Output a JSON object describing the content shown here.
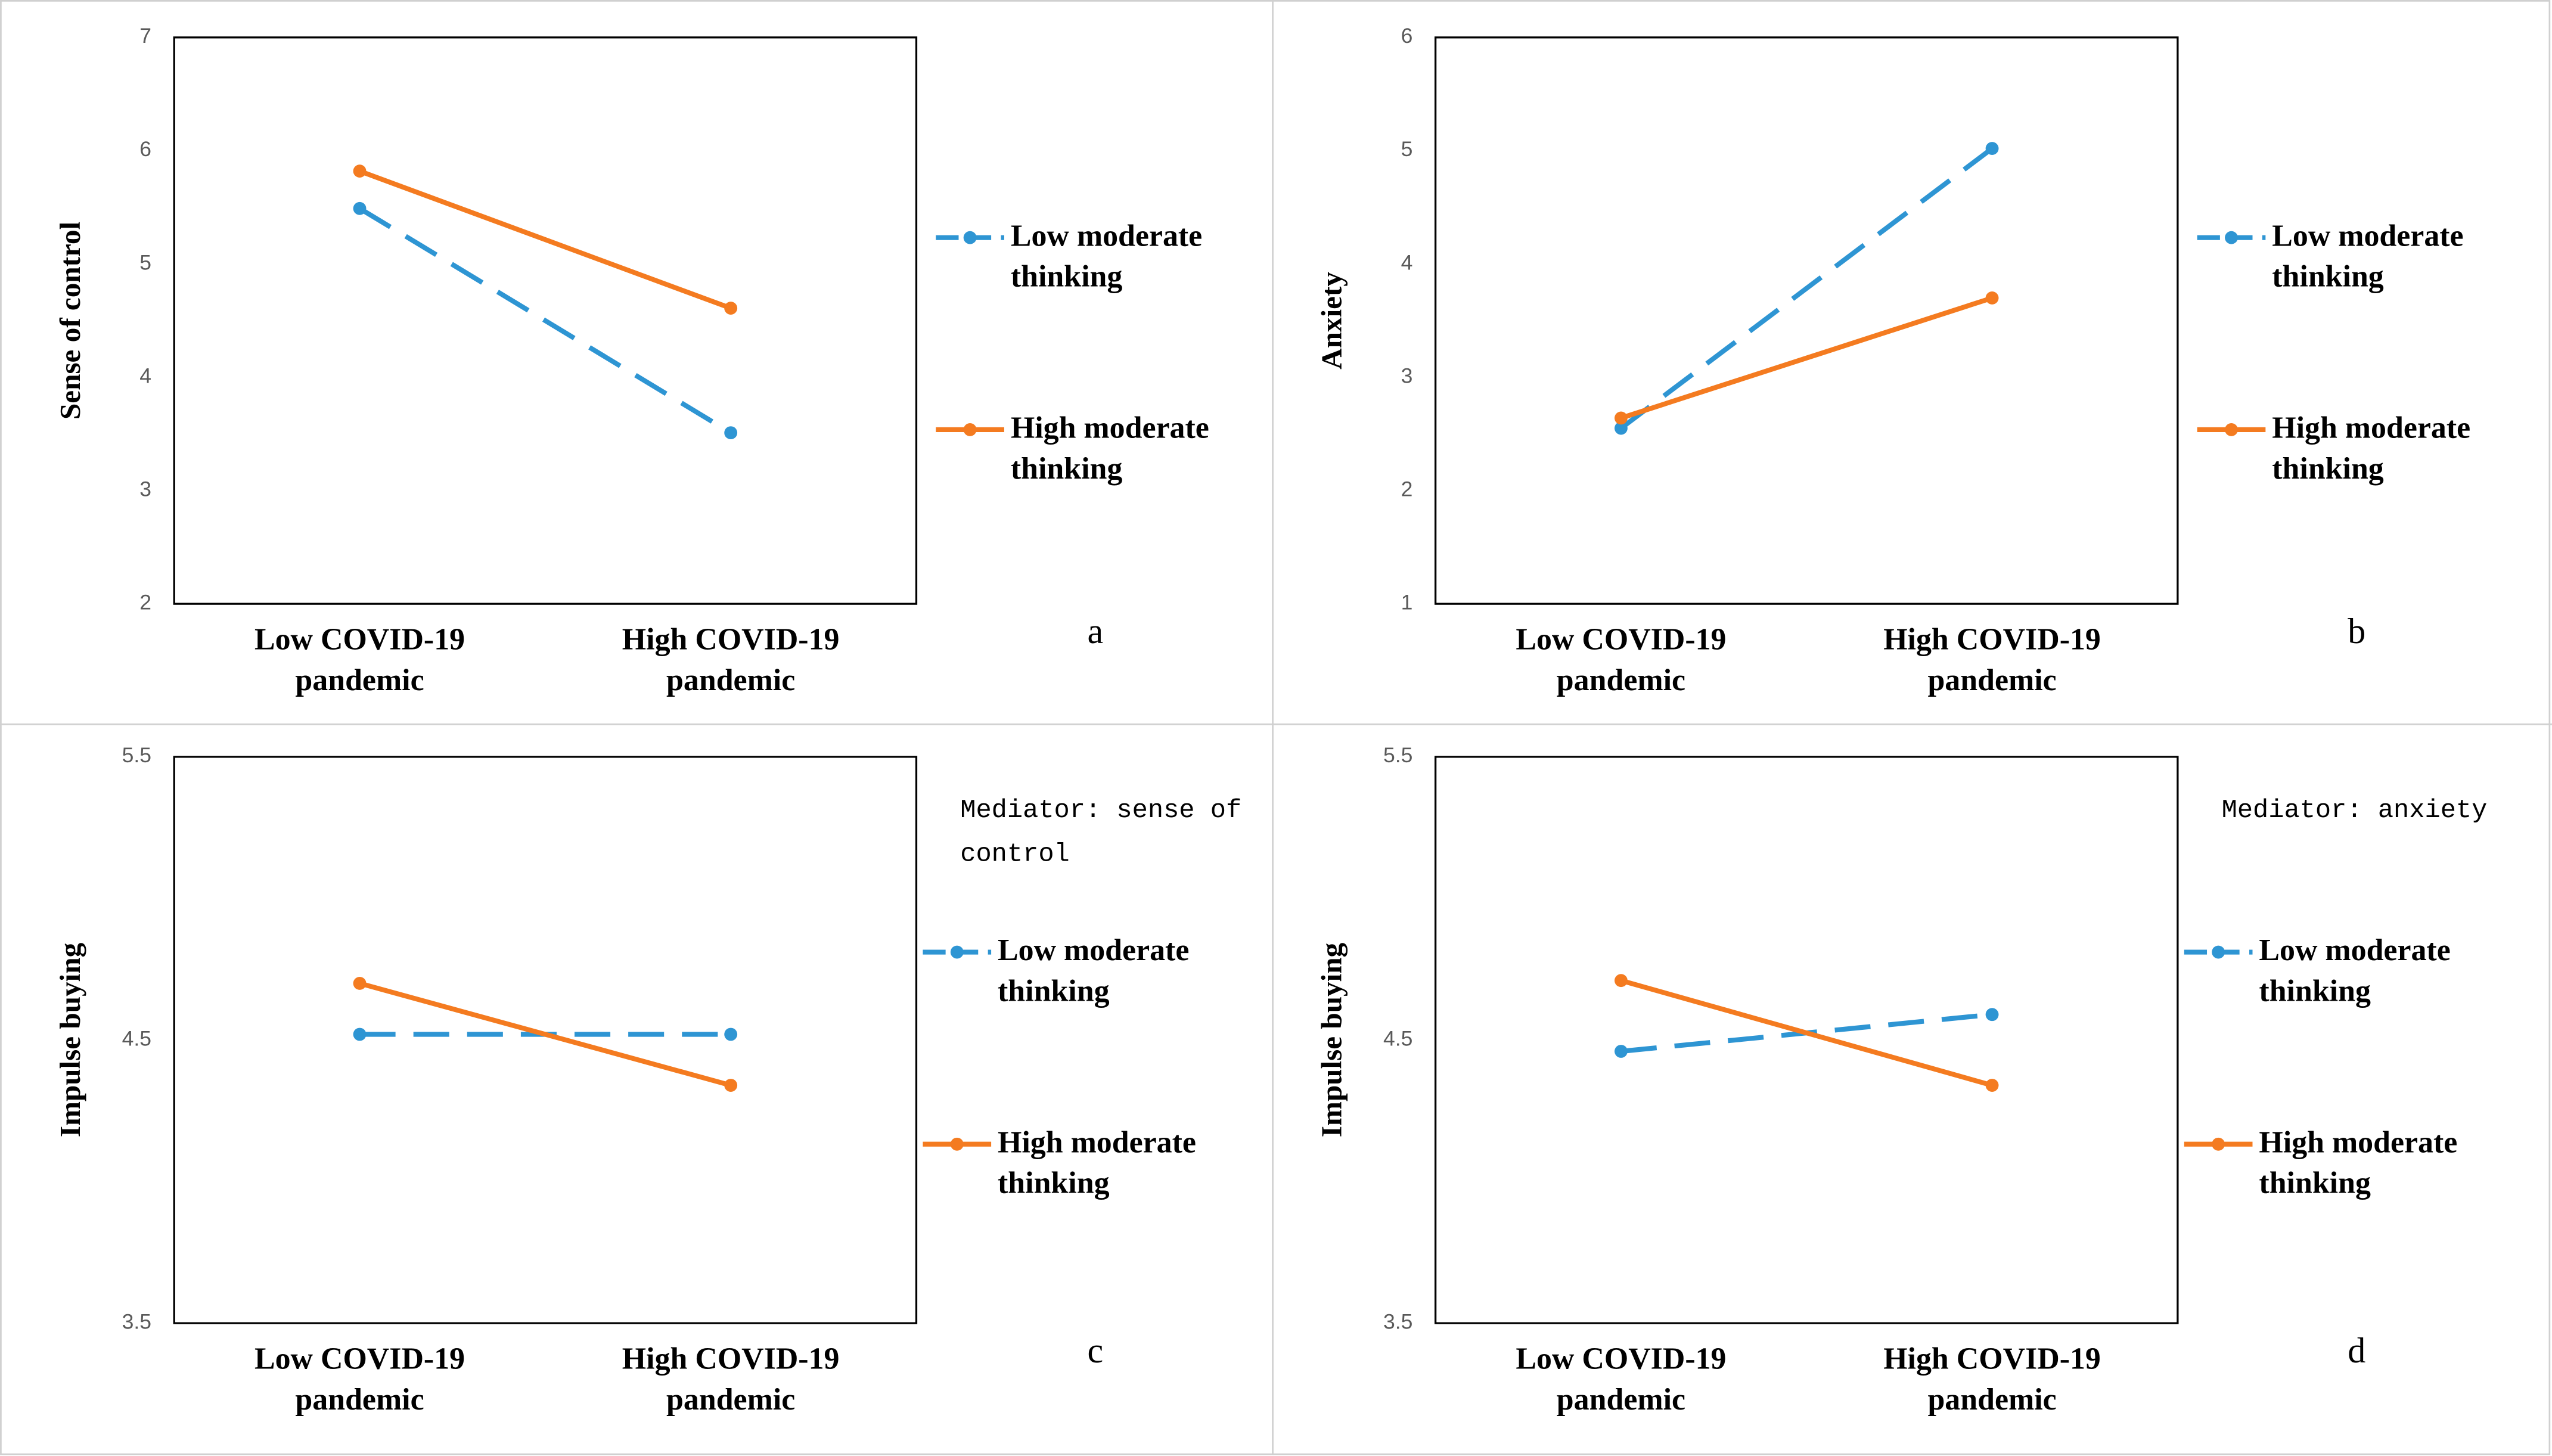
{
  "chart_data": [
    {
      "type": "line",
      "panel": "a",
      "y_label": "Sense of control",
      "categories": [
        "Low COVID-19 pandemic",
        "High COVID-19 pandemic"
      ],
      "series": [
        {
          "name": "Low moderate thinking",
          "color": "#2e95d3",
          "dashed": true,
          "values": [
            5.49,
            3.51
          ]
        },
        {
          "name": "High moderate thinking",
          "color": "#f47b20",
          "dashed": false,
          "values": [
            5.82,
            4.61
          ]
        }
      ],
      "ylim": [
        2,
        7
      ],
      "yticks": [
        2,
        3,
        4,
        5,
        6,
        7
      ]
    },
    {
      "type": "line",
      "panel": "b",
      "y_label": "Anxiety",
      "categories": [
        "Low COVID-19 pandemic",
        "High COVID-19 pandemic"
      ],
      "series": [
        {
          "name": "Low moderate thinking",
          "color": "#2e95d3",
          "dashed": true,
          "values": [
            2.55,
            5.02
          ]
        },
        {
          "name": "High moderate thinking",
          "color": "#f47b20",
          "dashed": false,
          "values": [
            2.64,
            3.7
          ]
        }
      ],
      "ylim": [
        1,
        6
      ],
      "yticks": [
        1,
        2,
        3,
        4,
        5,
        6
      ]
    },
    {
      "type": "line",
      "panel": "c",
      "y_label": "Impulse buying",
      "note": "Mediator: sense of control",
      "categories": [
        "Low COVID-19 pandemic",
        "High COVID-19 pandemic"
      ],
      "series": [
        {
          "name": "Low moderate thinking",
          "color": "#2e95d3",
          "dashed": true,
          "values": [
            4.52,
            4.52
          ]
        },
        {
          "name": "High moderate thinking",
          "color": "#f47b20",
          "dashed": false,
          "values": [
            4.7,
            4.34
          ]
        }
      ],
      "ylim": [
        3.5,
        5.5
      ],
      "yticks": [
        3.5,
        4.5,
        5.5
      ]
    },
    {
      "type": "line",
      "panel": "d",
      "y_label": "Impulse buying",
      "note": "Mediator: anxiety",
      "categories": [
        "Low COVID-19 pandemic",
        "High COVID-19 pandemic"
      ],
      "series": [
        {
          "name": "Low moderate thinking",
          "color": "#2e95d3",
          "dashed": true,
          "values": [
            4.46,
            4.59
          ]
        },
        {
          "name": "High moderate thinking",
          "color": "#f47b20",
          "dashed": false,
          "values": [
            4.71,
            4.34
          ]
        }
      ],
      "ylim": [
        3.5,
        5.5
      ],
      "yticks": [
        3.5,
        4.5,
        5.5
      ]
    }
  ]
}
